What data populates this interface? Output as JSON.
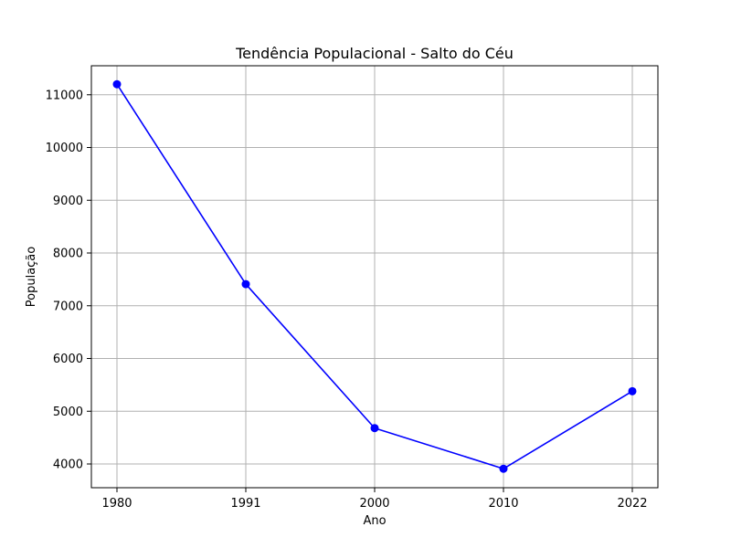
{
  "chart_data": {
    "type": "line",
    "title": "Tendência Populacional - Salto do Céu",
    "xlabel": "Ano",
    "ylabel": "População",
    "categories": [
      "1980",
      "1991",
      "2000",
      "2010",
      "2022"
    ],
    "series": [
      {
        "values": [
          11200,
          7410,
          4680,
          3910,
          5380
        ]
      }
    ],
    "yticks": [
      4000,
      5000,
      6000,
      7000,
      8000,
      9000,
      10000,
      11000
    ],
    "ylim": [
      3550,
      11550
    ],
    "grid": true,
    "colors": {
      "line": "#0000ff",
      "grid": "#b0b0b0",
      "axes": "#000000"
    }
  }
}
